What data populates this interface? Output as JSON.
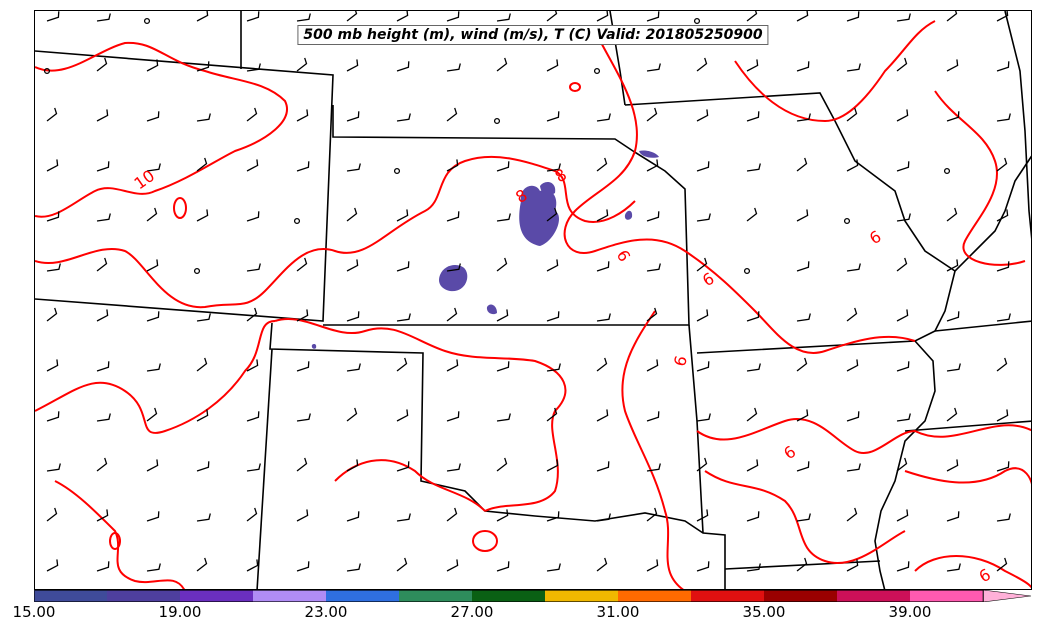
{
  "map": {
    "title": "500 mb height (m), wind (m/s), T (C) Valid: 201805250900",
    "isotherm_labels": [
      "10",
      "8",
      "6",
      "8",
      "6",
      "6",
      "6",
      "6",
      "6"
    ],
    "isotherm_color": "#ff0000",
    "boundary_color": "#000000",
    "shading_color": "#5a4aa8"
  },
  "colorbar": {
    "tick_labels": [
      "15.00",
      "19.00",
      "23.00",
      "27.00",
      "31.00",
      "35.00",
      "39.00"
    ],
    "colors": [
      "#3f4b9a",
      "#4e3f9e",
      "#6a2fbf",
      "#b08cf5",
      "#2f6fe0",
      "#2e8c5c",
      "#0a6014",
      "#f0b800",
      "#ff6a00",
      "#e01010",
      "#9a0000",
      "#cc1058",
      "#ff5ab0",
      "#ffb0d8"
    ]
  }
}
